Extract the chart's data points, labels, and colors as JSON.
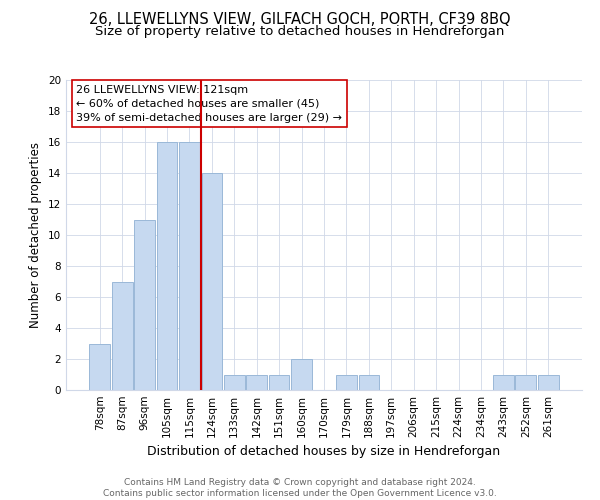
{
  "title": "26, LLEWELLYNS VIEW, GILFACH GOCH, PORTH, CF39 8BQ",
  "subtitle": "Size of property relative to detached houses in Hendreforgan",
  "xlabel": "Distribution of detached houses by size in Hendreforgan",
  "ylabel": "Number of detached properties",
  "bar_labels": [
    "78sqm",
    "87sqm",
    "96sqm",
    "105sqm",
    "115sqm",
    "124sqm",
    "133sqm",
    "142sqm",
    "151sqm",
    "160sqm",
    "170sqm",
    "179sqm",
    "188sqm",
    "197sqm",
    "206sqm",
    "215sqm",
    "224sqm",
    "234sqm",
    "243sqm",
    "252sqm",
    "261sqm"
  ],
  "bar_values": [
    3,
    7,
    11,
    16,
    16,
    14,
    1,
    1,
    1,
    2,
    0,
    1,
    1,
    0,
    0,
    0,
    0,
    0,
    1,
    1,
    1
  ],
  "bar_color": "#c6d9f0",
  "bar_edge_color": "#9ab8d8",
  "vline_color": "#cc0000",
  "vline_x": 4.5,
  "ylim": [
    0,
    20
  ],
  "yticks": [
    0,
    2,
    4,
    6,
    8,
    10,
    12,
    14,
    16,
    18,
    20
  ],
  "annotation_line1": "26 LLEWELLYNS VIEW: 121sqm",
  "annotation_line2": "← 60% of detached houses are smaller (45)",
  "annotation_line3": "39% of semi-detached houses are larger (29) →",
  "annotation_box_color": "#ffffff",
  "annotation_box_edge": "#cc0000",
  "footer_text": "Contains HM Land Registry data © Crown copyright and database right 2024.\nContains public sector information licensed under the Open Government Licence v3.0.",
  "title_fontsize": 10.5,
  "subtitle_fontsize": 9.5,
  "ylabel_fontsize": 8.5,
  "xlabel_fontsize": 9,
  "tick_fontsize": 7.5,
  "annotation_fontsize": 8,
  "footer_fontsize": 6.5,
  "background_color": "#ffffff",
  "grid_color": "#d0d8e8"
}
